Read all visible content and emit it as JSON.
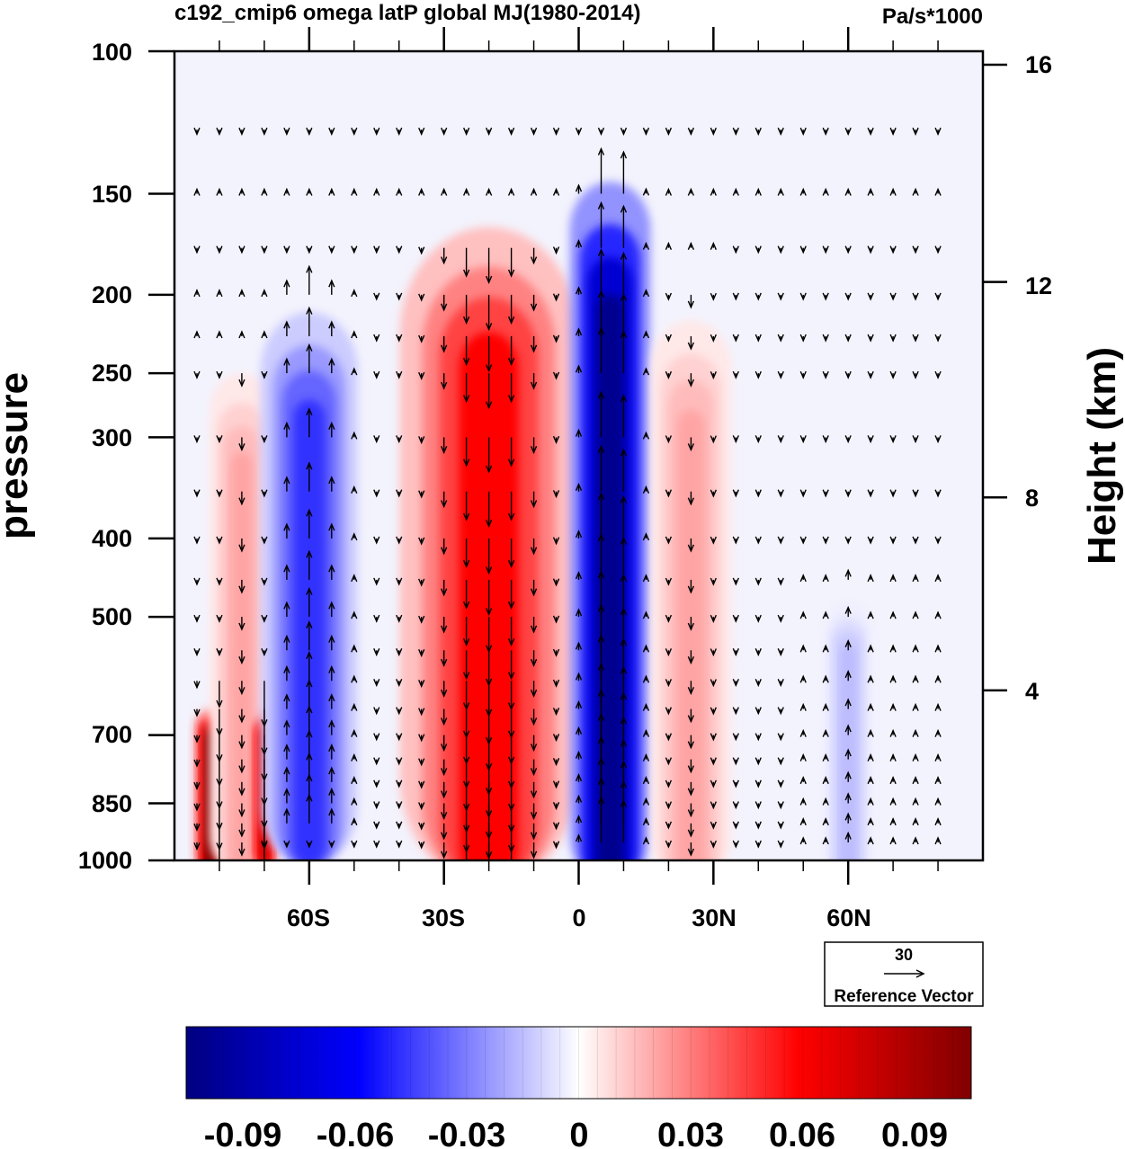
{
  "chart_data": {
    "type": "heatmap",
    "title": "c192_cmip6 omega latP global MJ(1980-2014)",
    "units": "Pa/s*1000",
    "xlabel": "",
    "ylabel": "pressure",
    "y2label": "Height (km)",
    "x_range": [
      -90,
      90
    ],
    "y_range": [
      1000,
      100
    ],
    "y_scale": "log",
    "x_tick_labels": [
      {
        "value": -60,
        "label": "60S"
      },
      {
        "value": -30,
        "label": "30S"
      },
      {
        "value": 0,
        "label": "0"
      },
      {
        "value": 30,
        "label": "30N"
      },
      {
        "value": 60,
        "label": "60N"
      }
    ],
    "y_ticks": [
      100,
      150,
      200,
      250,
      300,
      400,
      500,
      700,
      850,
      1000
    ],
    "y_tick_labels": [
      "100",
      "150",
      "200",
      "250",
      "300",
      "400",
      "500",
      "700",
      "850",
      "1000"
    ],
    "y2_ticks": [
      {
        "value": 16,
        "label": "16"
      },
      {
        "value": 12,
        "label": "12"
      },
      {
        "value": 8,
        "label": "8"
      },
      {
        "value": 4,
        "label": "4"
      }
    ],
    "colorbar": {
      "levels": [
        -0.1,
        0.1
      ],
      "colors": [
        "#000080",
        "#0000ff",
        "#ffffff",
        "#ff0000",
        "#800000"
      ],
      "tick_labels": [
        {
          "value": -0.09,
          "label": "-0.09"
        },
        {
          "value": -0.06,
          "label": "-0.06"
        },
        {
          "value": -0.03,
          "label": "-0.03"
        },
        {
          "value": 0,
          "label": "0"
        },
        {
          "value": 0.03,
          "label": "0.03"
        },
        {
          "value": 0.06,
          "label": "0.06"
        },
        {
          "value": 0.09,
          "label": "0.09"
        }
      ]
    },
    "omega_features": [
      {
        "lat": -82,
        "p_top": 650,
        "p_bottom": 960,
        "value": 0.1,
        "width": 2
      },
      {
        "lat": -75,
        "p_top": 250,
        "p_bottom": 960,
        "value": 0.02,
        "width": 4
      },
      {
        "lat": -70,
        "p_top": 650,
        "p_bottom": 940,
        "value": 0.07,
        "width": 2
      },
      {
        "lat": -60,
        "p_top": 210,
        "p_bottom": 940,
        "value": -0.045,
        "width": 6
      },
      {
        "lat": -20,
        "p_top": 165,
        "p_bottom": 990,
        "value": 0.055,
        "width": 11
      },
      {
        "lat": 7,
        "p_top": 145,
        "p_bottom": 990,
        "value": -0.095,
        "width": 5
      },
      {
        "lat": 25,
        "p_top": 215,
        "p_bottom": 990,
        "value": 0.02,
        "width": 5
      },
      {
        "lat": 60,
        "p_top": 480,
        "p_bottom": 980,
        "value": -0.015,
        "width": 3
      }
    ],
    "reference_vector": {
      "magnitude": "30",
      "label": "Reference Vector"
    }
  }
}
